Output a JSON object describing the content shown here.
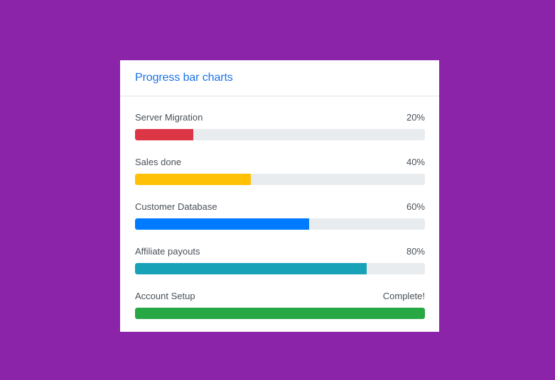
{
  "card": {
    "title": "Progress bar charts"
  },
  "bars": [
    {
      "label": "Server Migration",
      "value_text": "20%",
      "progress": 0.2,
      "color": "#dc3545"
    },
    {
      "label": "Sales done",
      "value_text": "40%",
      "progress": 0.4,
      "color": "#ffc107"
    },
    {
      "label": "Customer Database",
      "value_text": "60%",
      "progress": 0.6,
      "color": "#007bff"
    },
    {
      "label": "Affiliate payouts",
      "value_text": "80%",
      "progress": 0.8,
      "color": "#17a2b8"
    },
    {
      "label": "Account Setup",
      "value_text": "Complete!",
      "progress": 1.0,
      "color": "#28a745"
    }
  ]
}
